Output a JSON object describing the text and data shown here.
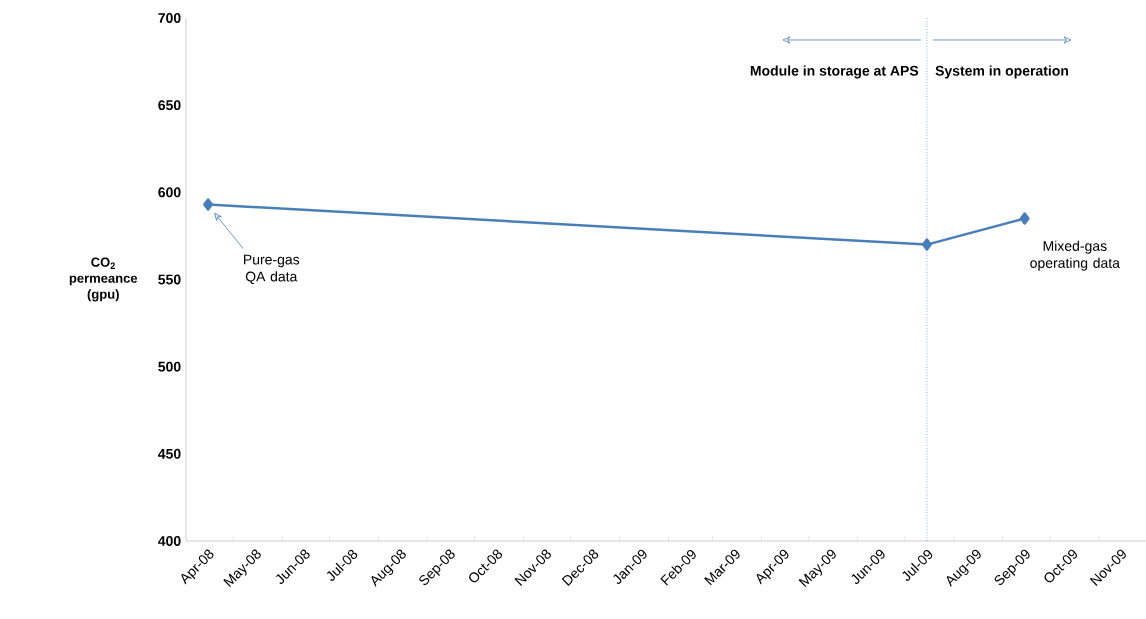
{
  "chart_data": {
    "type": "line",
    "ylabel": "CO$_{2}$ permeance (gpu)",
    "x": [
      "2008-04-15",
      "2009-07-15",
      "2009-09-15"
    ],
    "series": [
      {
        "color": "#4a7ebb",
        "values": [
          593,
          570,
          585
        ]
      }
    ],
    "marker": "diamond",
    "line_style": "solid",
    "xlim": [
      "2008-04-01",
      "2009-12-01"
    ],
    "xticks": [
      {
        "value": "2008-04-15",
        "label": "Apr-08"
      },
      {
        "value": "2008-05-15",
        "label": "May-08"
      },
      {
        "value": "2008-06-15",
        "label": "Jun-08"
      },
      {
        "value": "2008-07-15",
        "label": "Jul-08"
      },
      {
        "value": "2008-08-15",
        "label": "Aug-08"
      },
      {
        "value": "2008-09-15",
        "label": "Sep-08"
      },
      {
        "value": "2008-10-15",
        "label": "Oct-08"
      },
      {
        "value": "2008-11-15",
        "label": "Nov-08"
      },
      {
        "value": "2008-12-15",
        "label": "Dec-08"
      },
      {
        "value": "2009-01-15",
        "label": "Jan-09"
      },
      {
        "value": "2009-02-15",
        "label": "Feb-09"
      },
      {
        "value": "2009-03-15",
        "label": "Mar-09"
      },
      {
        "value": "2009-04-15",
        "label": "Apr-09"
      },
      {
        "value": "2009-05-15",
        "label": "May-09"
      },
      {
        "value": "2009-06-15",
        "label": "Jun-09"
      },
      {
        "value": "2009-07-15",
        "label": "Jul-09"
      },
      {
        "value": "2009-08-15",
        "label": "Aug-09"
      },
      {
        "value": "2009-09-15",
        "label": "Sep-09"
      },
      {
        "value": "2009-10-15",
        "label": "Oct-09"
      },
      {
        "value": "2009-11-15",
        "label": "Nov-09"
      },
      {
        "value": "2008-05-01",
        "label": null
      },
      {
        "value": "2008-06-01",
        "label": null
      },
      {
        "value": "2008-07-01",
        "label": null
      },
      {
        "value": "2008-08-01",
        "label": null
      },
      {
        "value": "2008-09-01",
        "label": null
      },
      {
        "value": "2008-10-01",
        "label": null
      },
      {
        "value": "2008-11-01",
        "label": null
      },
      {
        "value": "2008-12-01",
        "label": null
      },
      {
        "value": "2009-01-01",
        "label": null
      },
      {
        "value": "2009-02-01",
        "label": null
      },
      {
        "value": "2009-03-01",
        "label": null
      },
      {
        "value": "2009-04-01",
        "label": null
      },
      {
        "value": "2009-05-01",
        "label": null
      },
      {
        "value": "2009-06-01",
        "label": null
      },
      {
        "value": "2009-07-01",
        "label": null
      },
      {
        "value": "2009-08-01",
        "label": null
      },
      {
        "value": "2009-09-01",
        "label": null
      },
      {
        "value": "2009-10-01",
        "label": null
      },
      {
        "value": "2009-11-01",
        "label": null
      }
    ],
    "ylim": [
      400,
      700
    ],
    "yticks": [
      400,
      450,
      500,
      550,
      600,
      650,
      700
    ],
    "ref_lines": [
      {
        "axis": "x",
        "value": "2009-07-15",
        "color": "#4a7ebb",
        "line_style": "dotted"
      }
    ],
    "annotations": [
      "Module in storage at APS",
      "System in operation",
      "Pure-gas QA data",
      {
        "text": "Mixed-gas operating data",
        "x": "2009-09-15",
        "y": 585
      }
    ]
  }
}
